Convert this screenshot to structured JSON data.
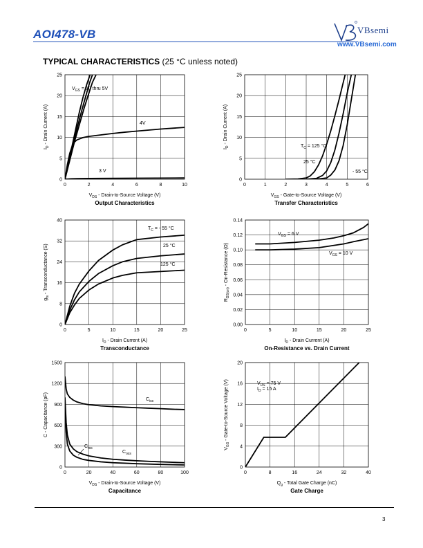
{
  "header": {
    "part_number": "AOI478-VB",
    "brand": "VBsemi",
    "url": "www.VBsemi.com"
  },
  "section": {
    "title": "TYPICAL CHARACTERISTICS",
    "note": "(25 °C unless noted)"
  },
  "page_number": "3",
  "chart_data": [
    {
      "id": "output",
      "type": "line",
      "title": "Output Characteristics",
      "xlabel": "VDS - Drain-to-Source Voltage (V)",
      "ylabel": "ID - Drain Current (A)",
      "xlim": [
        0,
        10
      ],
      "ylim": [
        0,
        25
      ],
      "xticks": [
        0,
        2,
        4,
        6,
        8,
        10
      ],
      "yticks": [
        0,
        5,
        10,
        15,
        20,
        25
      ],
      "grid": true,
      "series": [
        {
          "name": "VGS = 10 thru 5V",
          "points": [
            [
              0,
              0
            ],
            [
              0.3,
              4
            ],
            [
              0.6,
              8
            ],
            [
              0.9,
              12
            ],
            [
              1.2,
              16
            ],
            [
              1.5,
              19.5
            ],
            [
              1.8,
              22.5
            ],
            [
              2.1,
              25
            ]
          ]
        },
        {
          "name": "",
          "points": [
            [
              0,
              0
            ],
            [
              0.35,
              4.3
            ],
            [
              0.7,
              8.6
            ],
            [
              1.05,
              12.6
            ],
            [
              1.4,
              16.4
            ],
            [
              1.75,
              20
            ],
            [
              2.05,
              23
            ],
            [
              2.3,
              25
            ]
          ]
        },
        {
          "name": "",
          "points": [
            [
              0,
              0
            ],
            [
              0.4,
              4.5
            ],
            [
              0.8,
              9
            ],
            [
              1.2,
              13
            ],
            [
              1.6,
              17
            ],
            [
              2.0,
              20.6
            ],
            [
              2.3,
              23.2
            ],
            [
              2.6,
              25
            ]
          ]
        },
        {
          "name": "4V",
          "points": [
            [
              0,
              0
            ],
            [
              0.2,
              3.5
            ],
            [
              0.4,
              6.2
            ],
            [
              0.6,
              7.9
            ],
            [
              0.8,
              8.9
            ],
            [
              1.0,
              9.4
            ],
            [
              1.5,
              9.95
            ],
            [
              2,
              10.25
            ],
            [
              3,
              10.6
            ],
            [
              4,
              10.95
            ],
            [
              5,
              11.25
            ],
            [
              6,
              11.5
            ],
            [
              7,
              11.75
            ],
            [
              8,
              12
            ],
            [
              9,
              12.2
            ],
            [
              10,
              12.4
            ]
          ]
        },
        {
          "name": "3 V",
          "points": [
            [
              0,
              0
            ],
            [
              0.5,
              0.1
            ],
            [
              1,
              0.15
            ],
            [
              3,
              0.2
            ],
            [
              6,
              0.25
            ],
            [
              10,
              0.3
            ]
          ]
        }
      ]
    },
    {
      "id": "transfer",
      "type": "line",
      "title": "Transfer Characteristics",
      "xlabel": "VGS - Gate-to-Source Voltage (V)",
      "ylabel": "ID - Drain Current (A)",
      "xlim": [
        0,
        6
      ],
      "ylim": [
        0,
        25
      ],
      "xticks": [
        0,
        1,
        2,
        3,
        4,
        5,
        6
      ],
      "yticks": [
        0,
        5,
        10,
        15,
        20,
        25
      ],
      "grid": true,
      "series": [
        {
          "name": "TC = 125 °C",
          "points": [
            [
              2.0,
              0
            ],
            [
              2.6,
              0.05
            ],
            [
              3.0,
              0.3
            ],
            [
              3.2,
              0.8
            ],
            [
              3.4,
              1.8
            ],
            [
              3.6,
              3.4
            ],
            [
              3.8,
              5.6
            ],
            [
              4.0,
              8.4
            ],
            [
              4.2,
              11.6
            ],
            [
              4.4,
              15.2
            ],
            [
              4.6,
              19
            ],
            [
              4.8,
              23
            ],
            [
              4.9,
              25
            ]
          ]
        },
        {
          "name": "25 °C",
          "points": [
            [
              3.0,
              0
            ],
            [
              3.5,
              0.2
            ],
            [
              3.8,
              0.9
            ],
            [
              4.0,
              2
            ],
            [
              4.2,
              4
            ],
            [
              4.4,
              7
            ],
            [
              4.6,
              11
            ],
            [
              4.8,
              15.6
            ],
            [
              5.0,
              20.6
            ],
            [
              5.2,
              25
            ]
          ]
        },
        {
          "name": "- 55 °C",
          "points": [
            [
              3.5,
              0
            ],
            [
              4.0,
              0.3
            ],
            [
              4.2,
              1
            ],
            [
              4.4,
              2.2
            ],
            [
              4.6,
              4.4
            ],
            [
              4.8,
              8
            ],
            [
              5.0,
              13
            ],
            [
              5.15,
              17.5
            ],
            [
              5.3,
              22
            ],
            [
              5.4,
              25
            ]
          ]
        }
      ]
    },
    {
      "id": "transconductance",
      "type": "line",
      "title": "Transconductance",
      "xlabel": "ID - Drain Current (A)",
      "ylabel": "gfs - Transconductance (S)",
      "xlim": [
        0,
        25
      ],
      "ylim": [
        0,
        40
      ],
      "xticks": [
        0,
        5,
        10,
        15,
        20,
        25
      ],
      "yticks": [
        0,
        8,
        16,
        24,
        32,
        40
      ],
      "grid": true,
      "series": [
        {
          "name": "TC = - 55 °C",
          "points": [
            [
              0,
              0
            ],
            [
              1,
              7
            ],
            [
              2,
              12
            ],
            [
              3,
              15.5
            ],
            [
              5,
              20.5
            ],
            [
              7,
              24.5
            ],
            [
              10,
              28.5
            ],
            [
              12,
              30.5
            ],
            [
              15,
              32.5
            ],
            [
              20,
              33.5
            ],
            [
              25,
              34.2
            ]
          ]
        },
        {
          "name": "25 °C",
          "points": [
            [
              0,
              0
            ],
            [
              1,
              5.5
            ],
            [
              2,
              9.5
            ],
            [
              3,
              12.5
            ],
            [
              5,
              16.5
            ],
            [
              7,
              19.5
            ],
            [
              10,
              22.5
            ],
            [
              12,
              24
            ],
            [
              15,
              25.3
            ],
            [
              20,
              26.3
            ],
            [
              25,
              27
            ]
          ]
        },
        {
          "name": "125 °C",
          "points": [
            [
              0,
              0
            ],
            [
              1,
              4.5
            ],
            [
              2,
              7.5
            ],
            [
              3,
              10
            ],
            [
              5,
              13.2
            ],
            [
              7,
              15.5
            ],
            [
              10,
              17.8
            ],
            [
              12,
              18.8
            ],
            [
              15,
              19.8
            ],
            [
              20,
              20.3
            ],
            [
              25,
              20.8
            ]
          ]
        }
      ]
    },
    {
      "id": "onresistance",
      "type": "line",
      "title": "On-Resistance vs. Drain Current",
      "xlabel": "ID - Drain Current (A)",
      "ylabel": "RDS(on) - On-Resistance (Ω)",
      "xlim": [
        0,
        25
      ],
      "ylim": [
        0,
        0.14
      ],
      "xticks": [
        0,
        5,
        10,
        15,
        20,
        25
      ],
      "yticks": [
        0.0,
        0.02,
        0.04,
        0.06,
        0.08,
        0.1,
        0.12,
        0.14
      ],
      "grid": true,
      "series": [
        {
          "name": "VGS = 6 V",
          "points": [
            [
              2,
              0.108
            ],
            [
              5,
              0.108
            ],
            [
              10,
              0.11
            ],
            [
              15,
              0.113
            ],
            [
              18,
              0.116
            ],
            [
              20,
              0.119
            ],
            [
              22,
              0.123
            ],
            [
              24,
              0.13
            ],
            [
              25,
              0.135
            ]
          ]
        },
        {
          "name": "VGS = 10 V",
          "points": [
            [
              2,
              0.1
            ],
            [
              5,
              0.1
            ],
            [
              10,
              0.101
            ],
            [
              15,
              0.103
            ],
            [
              20,
              0.108
            ],
            [
              22,
              0.111
            ],
            [
              25,
              0.115
            ]
          ]
        }
      ]
    },
    {
      "id": "capacitance",
      "type": "line",
      "title": "Capacitance",
      "xlabel": "VDS - Drain-to-Source Voltage (V)",
      "ylabel": "C - Capacitance (pF)",
      "xlim": [
        0,
        100
      ],
      "ylim": [
        0,
        1500
      ],
      "xticks": [
        0,
        20,
        40,
        60,
        80,
        100
      ],
      "yticks": [
        0,
        300,
        600,
        900,
        1200,
        1500
      ],
      "grid": true,
      "series": [
        {
          "name": "Ciss",
          "points": [
            [
              0,
              1300
            ],
            [
              1,
              1120
            ],
            [
              2,
              1050
            ],
            [
              4,
              1000
            ],
            [
              7,
              960
            ],
            [
              10,
              935
            ],
            [
              15,
              910
            ],
            [
              20,
              895
            ],
            [
              30,
              878
            ],
            [
              40,
              868
            ],
            [
              50,
              860
            ],
            [
              60,
              852
            ],
            [
              70,
              845
            ],
            [
              80,
              838
            ],
            [
              90,
              830
            ],
            [
              100,
              825
            ]
          ]
        },
        {
          "name": "Crss",
          "points": [
            [
              0,
              900
            ],
            [
              1,
              500
            ],
            [
              2,
              330
            ],
            [
              4,
              230
            ],
            [
              7,
              170
            ],
            [
              10,
              140
            ],
            [
              15,
              110
            ],
            [
              20,
              95
            ],
            [
              30,
              75
            ],
            [
              40,
              62
            ],
            [
              50,
              55
            ],
            [
              60,
              48
            ],
            [
              70,
              43
            ],
            [
              80,
              38
            ],
            [
              90,
              34
            ],
            [
              100,
              30
            ]
          ]
        },
        {
          "name": "Coss",
          "points": [
            [
              0,
              1000
            ],
            [
              1,
              640
            ],
            [
              2,
              460
            ],
            [
              4,
              330
            ],
            [
              7,
              260
            ],
            [
              10,
              220
            ],
            [
              15,
              185
            ],
            [
              20,
              160
            ],
            [
              30,
              130
            ],
            [
              40,
              112
            ],
            [
              50,
              100
            ],
            [
              60,
              90
            ],
            [
              70,
              82
            ],
            [
              80,
              75
            ],
            [
              90,
              68
            ],
            [
              100,
              62
            ]
          ]
        }
      ]
    },
    {
      "id": "gatecharge",
      "type": "line",
      "title": "Gate Charge",
      "xlabel": "Qg - Total Gate Charge (nC)",
      "ylabel": "VGS - Gate-to-Source Voltage (V)",
      "xlim": [
        0,
        40
      ],
      "ylim": [
        0,
        20
      ],
      "xticks": [
        0,
        8,
        16,
        24,
        32,
        40
      ],
      "yticks": [
        0,
        4,
        8,
        12,
        16,
        20
      ],
      "grid": true,
      "annotation": [
        "VDS = 75 V",
        "ID = 15 A"
      ],
      "series": [
        {
          "name": "",
          "points": [
            [
              0,
              0
            ],
            [
              6,
              5.7
            ],
            [
              13,
              5.7
            ],
            [
              37,
              20
            ]
          ]
        }
      ]
    }
  ]
}
